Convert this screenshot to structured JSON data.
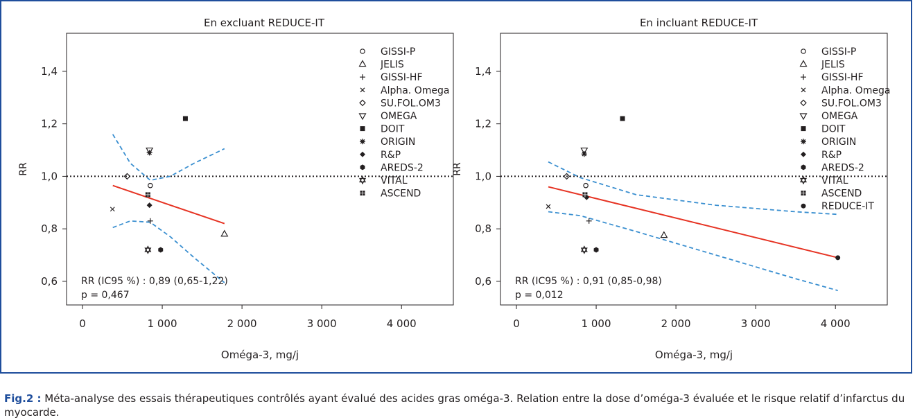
{
  "figure": {
    "label": "Fig.2 :",
    "caption": "Méta-analyse des essais thérapeutiques contrôlés ayant évalué des acides gras oméga-3. Relation entre la dose d’oméga-3 évaluée et le risque relatif d’infarctus du myocarde."
  },
  "colors": {
    "border": "#1f4e9c",
    "regression": "#e63323",
    "ci": "#3a8fd0",
    "ink": "#231f20"
  },
  "chart_data": [
    {
      "type": "scatter",
      "title": "En excluant REDUCE-IT",
      "xlabel": "Oméga-3, mg/j",
      "ylabel": "RR",
      "xlim": [
        -200,
        4650
      ],
      "ylim": [
        0.51,
        1.545
      ],
      "xticks": [
        0,
        1000,
        2000,
        3000,
        4000
      ],
      "xtick_labels": [
        "0",
        "1 000",
        "2 000",
        "3 000",
        "4 000"
      ],
      "yticks": [
        0.6,
        0.8,
        1.0,
        1.2,
        1.4
      ],
      "ytick_labels": [
        "0,6",
        "0,8",
        "1,0",
        "1,2",
        "1,4"
      ],
      "reference_line": 1.0,
      "legend_position": "top-right",
      "stats": [
        "RR (IC95 %) : 0,89 (0,65-1,22)",
        "p = 0,467"
      ],
      "regression": {
        "x": [
          380,
          1780
        ],
        "y": [
          0.965,
          0.82
        ]
      },
      "ci_upper": {
        "x": [
          380,
          600,
          850,
          1100,
          1400,
          1780
        ],
        "y": [
          1.16,
          1.05,
          0.985,
          1.0,
          1.05,
          1.105
        ]
      },
      "ci_lower": {
        "x": [
          380,
          600,
          850,
          1100,
          1400,
          1780
        ],
        "y": [
          0.805,
          0.83,
          0.825,
          0.77,
          0.69,
          0.595
        ]
      },
      "series": [
        {
          "name": "GISSI-P",
          "marker": "circle",
          "x": 850,
          "y": 0.965
        },
        {
          "name": "JELIS",
          "marker": "triangle-up",
          "x": 1780,
          "y": 0.78
        },
        {
          "name": "GISSI-HF",
          "marker": "plus",
          "x": 850,
          "y": 0.83
        },
        {
          "name": "Alpha. Omega",
          "marker": "x",
          "x": 376,
          "y": 0.875
        },
        {
          "name": "SU.FOL.OM3",
          "marker": "diamond",
          "x": 560,
          "y": 1.0
        },
        {
          "name": "OMEGA",
          "marker": "triangle-down",
          "x": 840,
          "y": 1.1
        },
        {
          "name": "DOIT",
          "marker": "square",
          "x": 1290,
          "y": 1.22
        },
        {
          "name": "ORIGIN",
          "marker": "asterisk",
          "x": 840,
          "y": 1.09
        },
        {
          "name": "R&P",
          "marker": "filled-diamond",
          "x": 840,
          "y": 0.89
        },
        {
          "name": "AREDS-2",
          "marker": "filled-hexagon",
          "x": 980,
          "y": 0.72
        },
        {
          "name": "VITAL",
          "marker": "star",
          "x": 820,
          "y": 0.72
        },
        {
          "name": "ASCEND",
          "marker": "grid-square",
          "x": 820,
          "y": 0.93
        }
      ]
    },
    {
      "type": "scatter",
      "title": "En incluant REDUCE-IT",
      "xlabel": "Oméga-3, mg/j",
      "ylabel": "RR",
      "xlim": [
        -200,
        4650
      ],
      "ylim": [
        0.51,
        1.545
      ],
      "xticks": [
        0,
        1000,
        2000,
        3000,
        4000
      ],
      "xtick_labels": [
        "0",
        "1 000",
        "2 000",
        "3 000",
        "4 000"
      ],
      "yticks": [
        0.6,
        0.8,
        1.0,
        1.2,
        1.4
      ],
      "ytick_labels": [
        "0,6",
        "0,8",
        "1,0",
        "1,2",
        "1,4"
      ],
      "reference_line": 1.0,
      "legend_position": "top-right",
      "stats": [
        "RR (IC95 %) : 0,91 (0,85-0,98)",
        "p = 0,012"
      ],
      "regression": {
        "x": [
          400,
          4030
        ],
        "y": [
          0.96,
          0.69
        ]
      },
      "ci_upper": {
        "x": [
          400,
          800,
          1500,
          2500,
          3500,
          4030
        ],
        "y": [
          1.055,
          0.995,
          0.93,
          0.89,
          0.865,
          0.855
        ]
      },
      "ci_lower": {
        "x": [
          400,
          800,
          1500,
          2500,
          3500,
          4030
        ],
        "y": [
          0.865,
          0.85,
          0.79,
          0.7,
          0.61,
          0.565
        ]
      },
      "series": [
        {
          "name": "GISSI-P",
          "marker": "circle",
          "x": 870,
          "y": 0.965
        },
        {
          "name": "JELIS",
          "marker": "triangle-up",
          "x": 1850,
          "y": 0.775
        },
        {
          "name": "GISSI-HF",
          "marker": "plus",
          "x": 910,
          "y": 0.83
        },
        {
          "name": "Alpha. Omega",
          "marker": "x",
          "x": 400,
          "y": 0.885
        },
        {
          "name": "SU.FOL.OM3",
          "marker": "diamond",
          "x": 630,
          "y": 1.0
        },
        {
          "name": "OMEGA",
          "marker": "triangle-down",
          "x": 850,
          "y": 1.1
        },
        {
          "name": "DOIT",
          "marker": "square",
          "x": 1330,
          "y": 1.22
        },
        {
          "name": "ORIGIN",
          "marker": "asterisk",
          "x": 850,
          "y": 1.085
        },
        {
          "name": "R&P",
          "marker": "filled-diamond",
          "x": 880,
          "y": 0.92
        },
        {
          "name": "AREDS-2",
          "marker": "filled-hexagon",
          "x": 1000,
          "y": 0.72
        },
        {
          "name": "VITAL",
          "marker": "star",
          "x": 850,
          "y": 0.72
        },
        {
          "name": "ASCEND",
          "marker": "grid-square",
          "x": 860,
          "y": 0.93
        },
        {
          "name": "REDUCE-IT",
          "marker": "filled-circle",
          "x": 4030,
          "y": 0.69
        }
      ]
    }
  ]
}
